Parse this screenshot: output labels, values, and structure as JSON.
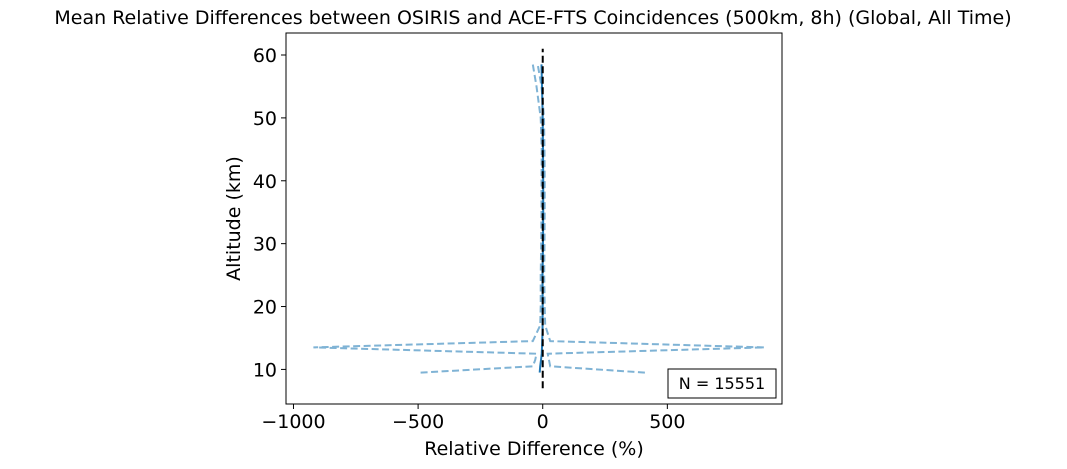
{
  "chart_data": {
    "type": "line",
    "title": "Mean Relative Differences between OSIRIS and ACE-FTS Coincidences (500km, 8h) (Global, All Time)",
    "xlabel": "Relative Difference (%)",
    "ylabel": "Altitude (km)",
    "xlim": [
      -1030,
      960
    ],
    "ylim": [
      4.5,
      63.5
    ],
    "xticks": [
      -1000,
      -500,
      0,
      500
    ],
    "xtick_labels": [
      "−1000",
      "−500",
      "0",
      "500"
    ],
    "yticks": [
      10,
      20,
      30,
      40,
      50,
      60
    ],
    "ytick_labels": [
      "10",
      "20",
      "30",
      "40",
      "50",
      "60"
    ],
    "grid": false,
    "annotation": "N = 15551",
    "annotation_position": "bottom-right",
    "colors": {
      "mean": "#1f77b4",
      "bounds": "#7fb3d5",
      "reference": "#000000"
    },
    "series": [
      {
        "role": "mean",
        "style": "solid",
        "points": [
          [
            -12,
            9.5
          ],
          [
            -10,
            10.5
          ],
          [
            -7,
            11.5
          ],
          [
            -4,
            12.5
          ],
          [
            -3,
            13.5
          ],
          [
            -2,
            14.5
          ],
          [
            -1,
            16
          ],
          [
            0,
            20
          ],
          [
            -1,
            25
          ],
          [
            1,
            30
          ],
          [
            2,
            35
          ],
          [
            2,
            40
          ],
          [
            1,
            45
          ],
          [
            0,
            50
          ],
          [
            -3,
            55
          ],
          [
            -5,
            58.5
          ]
        ]
      },
      {
        "role": "lower",
        "style": "dashed",
        "points": [
          [
            -490,
            9.5
          ],
          [
            -40,
            10.5
          ],
          [
            -30,
            11.5
          ],
          [
            -25,
            12.5
          ],
          [
            -920,
            13.5
          ],
          [
            -40,
            14.5
          ],
          [
            -10,
            17
          ],
          [
            -8,
            20
          ],
          [
            -8,
            25
          ],
          [
            -6,
            30
          ],
          [
            -5,
            35
          ],
          [
            -5,
            40
          ],
          [
            -4,
            45
          ],
          [
            -8,
            50
          ],
          [
            -25,
            55
          ],
          [
            -40,
            58.5
          ]
        ]
      },
      {
        "role": "upper",
        "style": "dashed",
        "points": [
          [
            410,
            9.5
          ],
          [
            30,
            10.5
          ],
          [
            25,
            11.5
          ],
          [
            20,
            12.5
          ],
          [
            890,
            13.5
          ],
          [
            30,
            14.5
          ],
          [
            10,
            17
          ],
          [
            8,
            20
          ],
          [
            6,
            25
          ],
          [
            7,
            30
          ],
          [
            8,
            35
          ],
          [
            8,
            40
          ],
          [
            7,
            45
          ],
          [
            5,
            50
          ],
          [
            -5,
            55
          ],
          [
            -20,
            58.5
          ]
        ]
      }
    ],
    "reference_line": {
      "x": 0,
      "y_range": [
        7,
        61
      ],
      "style": "dashed"
    }
  }
}
